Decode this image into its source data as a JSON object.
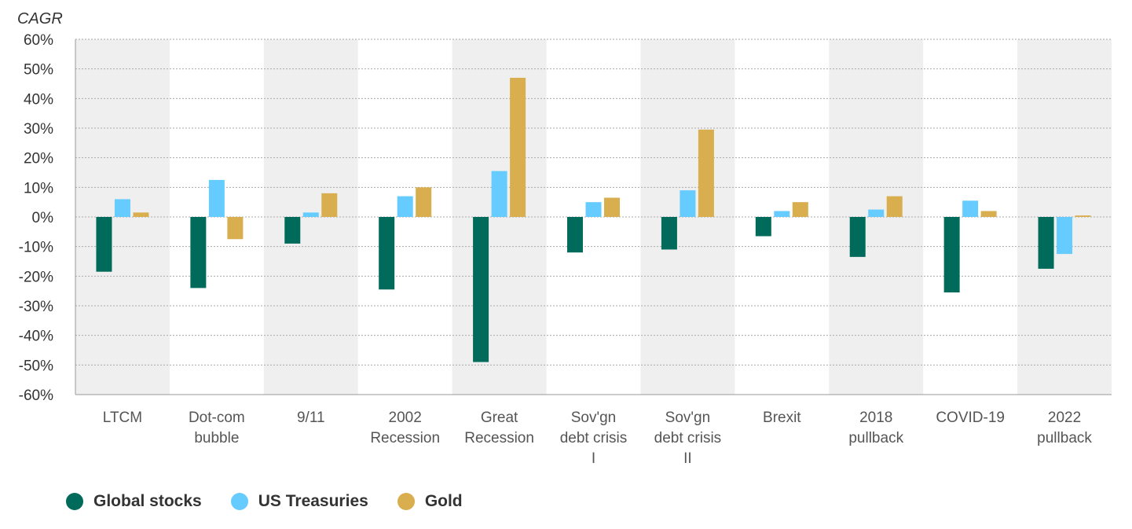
{
  "chart_data": {
    "type": "bar",
    "ylabel": "CAGR",
    "ylim": [
      -60,
      60
    ],
    "ytick_step": 10,
    "ytick_labels": [
      "60%",
      "50%",
      "40%",
      "30%",
      "20%",
      "10%",
      "0%",
      "-10%",
      "-20%",
      "-30%",
      "-40%",
      "-50%",
      "-60%"
    ],
    "grid": "horizontal dotted",
    "legend_position": "bottom-left",
    "categories": [
      [
        "LTCM"
      ],
      [
        "Dot-com",
        "bubble"
      ],
      [
        "9/11"
      ],
      [
        "2002",
        "Recession"
      ],
      [
        "Great",
        "Recession"
      ],
      [
        "Sov'gn",
        "debt crisis",
        "I"
      ],
      [
        "Sov'gn",
        "debt crisis",
        "II"
      ],
      [
        "Brexit"
      ],
      [
        "2018",
        "pullback"
      ],
      [
        "COVID-19"
      ],
      [
        "2022",
        "pullback"
      ]
    ],
    "series": [
      {
        "name": "Global stocks",
        "color": "#006a5b",
        "values": [
          -18.5,
          -24,
          -9,
          -24.5,
          -49,
          -12,
          -11,
          -6.5,
          -13.5,
          -25.5,
          -17.5
        ]
      },
      {
        "name": "US Treasuries",
        "color": "#66ccff",
        "values": [
          6,
          12.5,
          1.5,
          7,
          15.5,
          5,
          9,
          2,
          2.5,
          5.5,
          -12.5
        ]
      },
      {
        "name": "Gold",
        "color": "#d9ae4e",
        "values": [
          1.5,
          -7.5,
          8,
          10,
          47,
          6.5,
          29.5,
          5,
          7,
          2,
          0.5
        ]
      }
    ],
    "band_color": "#efefef"
  }
}
